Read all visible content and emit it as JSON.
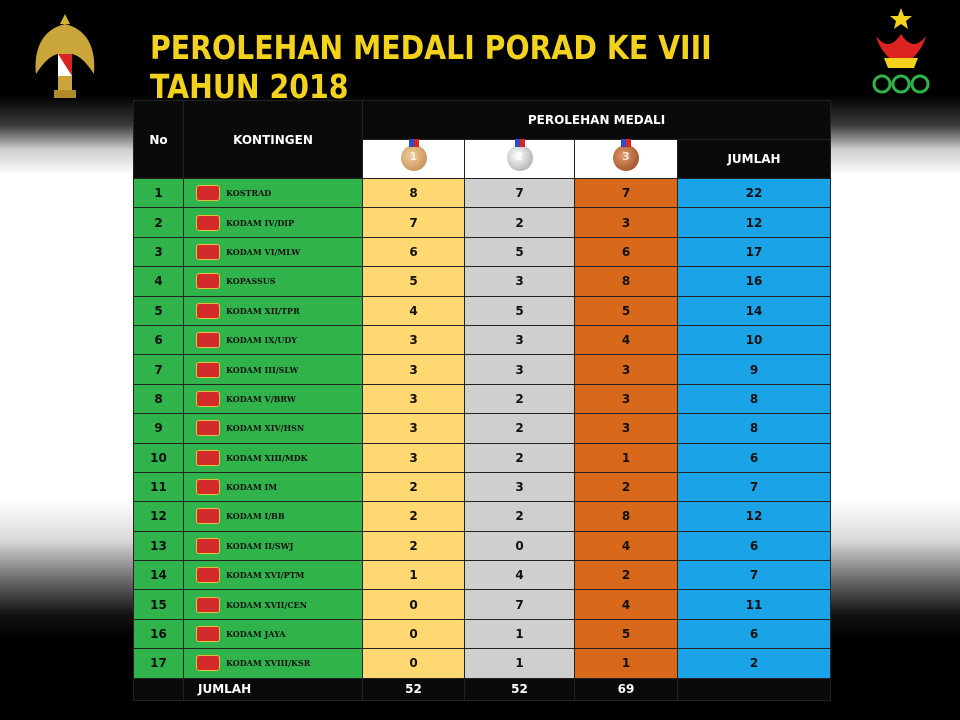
{
  "title": "PEROLEHAN MEDALI PORAD KE VIII TAHUN 2018",
  "headers": {
    "no": "No",
    "kontingen": "KONTINGEN",
    "perolehan": "PEROLEHAN MEDALI",
    "jumlah": "JUMLAH",
    "medals": [
      "1",
      "2",
      "3"
    ]
  },
  "rows": [
    {
      "no": "1",
      "name": "KOSTRAD",
      "gold": "8",
      "silver": "7",
      "bronze": "7",
      "total": "22"
    },
    {
      "no": "2",
      "name": "KODAM IV/DIP",
      "gold": "7",
      "silver": "2",
      "bronze": "3",
      "total": "12"
    },
    {
      "no": "3",
      "name": "KODAM VI/MLW",
      "gold": "6",
      "silver": "5",
      "bronze": "6",
      "total": "17"
    },
    {
      "no": "4",
      "name": "KOPASSUS",
      "gold": "5",
      "silver": "3",
      "bronze": "8",
      "total": "16"
    },
    {
      "no": "5",
      "name": "KODAM XII/TPR",
      "gold": "4",
      "silver": "5",
      "bronze": "5",
      "total": "14"
    },
    {
      "no": "6",
      "name": "KODAM IX/UDY",
      "gold": "3",
      "silver": "3",
      "bronze": "4",
      "total": "10"
    },
    {
      "no": "7",
      "name": "KODAM III/SLW",
      "gold": "3",
      "silver": "3",
      "bronze": "3",
      "total": "9"
    },
    {
      "no": "8",
      "name": "KODAM V/BRW",
      "gold": "3",
      "silver": "2",
      "bronze": "3",
      "total": "8"
    },
    {
      "no": "9",
      "name": "KODAM XIV/HSN",
      "gold": "3",
      "silver": "2",
      "bronze": "3",
      "total": "8"
    },
    {
      "no": "10",
      "name": "KODAM XIII/MDK",
      "gold": "3",
      "silver": "2",
      "bronze": "1",
      "total": "6"
    },
    {
      "no": "11",
      "name": "KODAM IM",
      "gold": "2",
      "silver": "3",
      "bronze": "2",
      "total": "7"
    },
    {
      "no": "12",
      "name": "KODAM I/BB",
      "gold": "2",
      "silver": "2",
      "bronze": "8",
      "total": "12"
    },
    {
      "no": "13",
      "name": "KODAM II/SWJ",
      "gold": "2",
      "silver": "0",
      "bronze": "4",
      "total": "6"
    },
    {
      "no": "14",
      "name": "KODAM XVI/PTM",
      "gold": "1",
      "silver": "4",
      "bronze": "2",
      "total": "7"
    },
    {
      "no": "15",
      "name": "KODAM XVII/CEN",
      "gold": "0",
      "silver": "7",
      "bronze": "4",
      "total": "11"
    },
    {
      "no": "16",
      "name": "KODAM JAYA",
      "gold": "0",
      "silver": "1",
      "bronze": "5",
      "total": "6"
    },
    {
      "no": "17",
      "name": "KODAM XVIII/KSR",
      "gold": "0",
      "silver": "1",
      "bronze": "1",
      "total": "2"
    }
  ],
  "footer": {
    "label": "JUMLAH",
    "gold": "52",
    "silver": "52",
    "bronze": "69",
    "total": ""
  },
  "colors": {
    "title": "#f2d21b",
    "green": "#2fb34a",
    "gold": "#ffd872",
    "silver": "#cfcfcf",
    "bronze": "#d9691a",
    "blue": "#1aa3e6"
  },
  "icons": [
    "army-eagle-emblem-icon",
    "porad-torch-rings-logo-icon",
    "unit-emblem-icon",
    "gold-medal-icon",
    "silver-medal-icon",
    "bronze-medal-icon"
  ]
}
